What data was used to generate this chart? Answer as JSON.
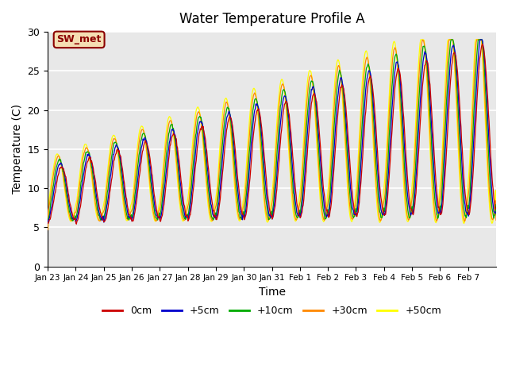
{
  "title": "Water Temperature Profile A",
  "xlabel": "Time",
  "ylabel": "Temperature (C)",
  "ylim": [
    0,
    30
  ],
  "bg_color": "#e8e8e8",
  "annotation_text": "SW_met",
  "annotation_color": "#8b0000",
  "annotation_bg": "#f5deb3",
  "legend_labels": [
    "0cm",
    "+5cm",
    "+10cm",
    "+30cm",
    "+50cm"
  ],
  "line_colors": [
    "#cc0000",
    "#0000cc",
    "#00aa00",
    "#ff8800",
    "#ffff00"
  ],
  "x_tick_labels": [
    "Jan 23",
    "Jan 24",
    "Jan 25",
    "Jan 26",
    "Jan 27",
    "Jan 28",
    "Jan 29",
    "Jan 30",
    "Jan 31",
    "Feb 1",
    "Feb 2",
    "Feb 3",
    "Feb 4",
    "Feb 5",
    "Feb 6",
    "Feb 7"
  ],
  "n_days": 16,
  "n_points_per_day": 48
}
